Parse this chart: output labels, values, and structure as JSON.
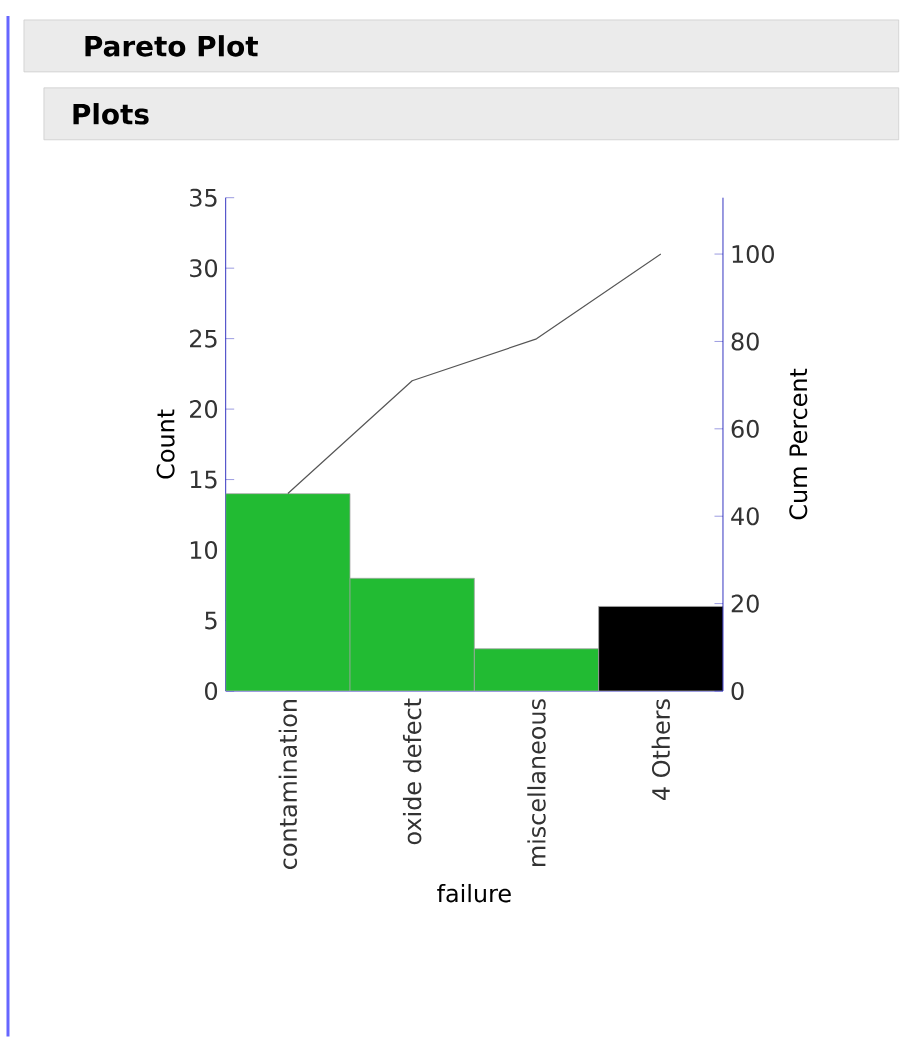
{
  "chart_data": {
    "type": "bar",
    "title": "Pareto Plot",
    "subtitle": "Plots",
    "categories": [
      "contamination",
      "oxide defect",
      "miscellaneous",
      "4 Others"
    ],
    "series": [
      {
        "colors": [
          "#22bb33",
          "#22bb33",
          "#22bb33",
          "#000000"
        ],
        "values": [
          14,
          8,
          3,
          6
        ]
      },
      {
        "type": "line",
        "axis": "y2",
        "color": "#555555",
        "values": [
          45.2,
          71.0,
          80.6,
          100
        ]
      }
    ],
    "xlabel": "failure",
    "ylabel": "Count",
    "y2label": "Cum Percent",
    "ylim": [
      0,
      35
    ],
    "yticks": [
      0,
      5,
      10,
      15,
      20,
      25,
      30,
      35
    ],
    "y2lim": [
      0,
      112.9
    ],
    "y2ticks": [
      0,
      20,
      40,
      60,
      80,
      100
    ]
  }
}
